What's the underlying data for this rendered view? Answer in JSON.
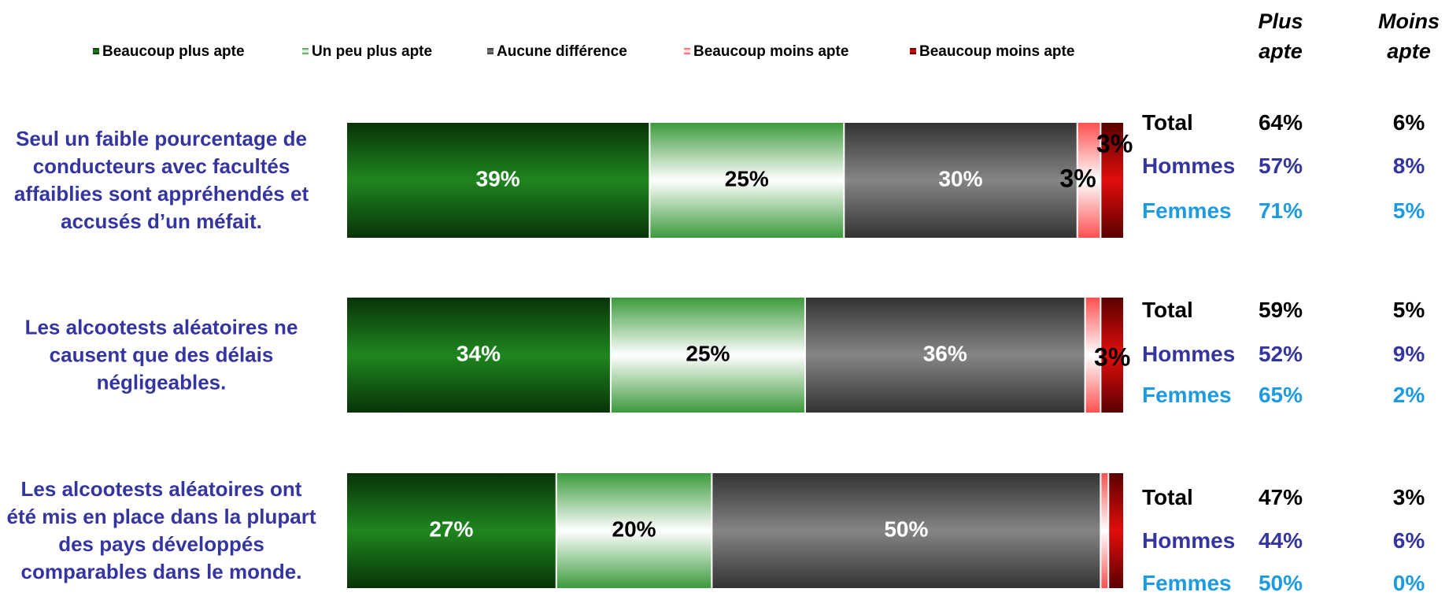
{
  "chart_data": {
    "type": "stacked-bar-horizontal",
    "categories": [
      "Seul un faible pourcentage de conducteurs avec facultés affaiblies sont appréhendés et accusés d’un méfait.",
      "Les alcootests aléatoires ne causent que des délais négligeables.",
      "Les alcootests aléatoires ont été mis en place dans la plupart des pays développés comparables dans le monde."
    ],
    "xlim": [
      0,
      100
    ],
    "series": [
      {
        "name": "Beaucoup plus apte",
        "color": "#138013",
        "values": [
          39,
          34,
          27
        ],
        "value_labels": [
          "39%",
          "34%",
          "27%"
        ]
      },
      {
        "name": "Un peu plus apte",
        "color": "#3c9a3c",
        "values": [
          25,
          25,
          20
        ],
        "value_labels": [
          "25%",
          "25%",
          "20%"
        ]
      },
      {
        "name": "Aucune différence",
        "color": "#7f7f7f",
        "values": [
          30,
          36,
          50
        ],
        "value_labels": [
          "30%",
          "36%",
          "50%"
        ]
      },
      {
        "name": "Beaucoup moins apte",
        "color": "#ff5050",
        "values": [
          3,
          2,
          1
        ],
        "value_labels": [
          "3%",
          null,
          null
        ]
      },
      {
        "name": "Beaucoup moins apte",
        "color": "#e00000",
        "values": [
          3,
          3,
          2
        ],
        "value_labels": [
          "3%",
          "3%",
          null
        ]
      }
    ],
    "summary": {
      "columns": [
        "Plus apte",
        "Moins apte"
      ],
      "groups": [
        [
          [
            "Total",
            "64%",
            "6%"
          ],
          [
            "Hommes",
            "57%",
            "8%"
          ],
          [
            "Femmes",
            "71%",
            "5%"
          ]
        ],
        [
          [
            "Total",
            "59%",
            "5%"
          ],
          [
            "Hommes",
            "52%",
            "9%"
          ],
          [
            "Femmes",
            "65%",
            "2%"
          ]
        ],
        [
          [
            "Total",
            "47%",
            "3%"
          ],
          [
            "Hommes",
            "44%",
            "6%"
          ],
          [
            "Femmes",
            "50%",
            "0%"
          ]
        ]
      ]
    }
  }
}
